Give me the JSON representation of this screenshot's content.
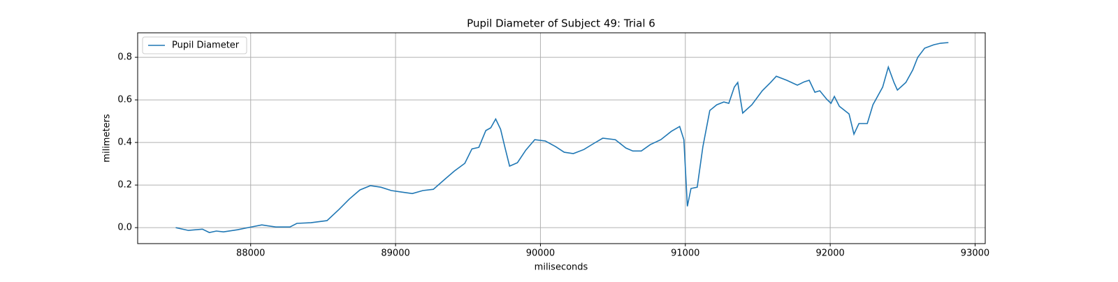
{
  "chart_data": {
    "type": "line",
    "title": "Pupil Diameter of Subject 49: Trial 6",
    "xlabel": "miliseconds",
    "ylabel": "milimeters",
    "xlim": [
      87220,
      93070
    ],
    "ylim": [
      -0.075,
      0.915
    ],
    "xticks": [
      88000,
      89000,
      90000,
      91000,
      92000,
      93000
    ],
    "yticks": [
      {
        "value": 0,
        "label": "0.0"
      },
      0.2,
      0.4,
      0.6,
      0.8
    ],
    "grid": true,
    "legend": "upper left",
    "x": [
      87483,
      87570,
      87667,
      87715,
      87763,
      87812,
      87908,
      87981,
      88077,
      88174,
      88271,
      88319,
      88415,
      88527,
      88609,
      88681,
      88754,
      88826,
      88899,
      88971,
      89043,
      89116,
      89188,
      89261,
      89333,
      89406,
      89478,
      89527,
      89575,
      89623,
      89657,
      89691,
      89725,
      89754,
      89787,
      89841,
      89899,
      89961,
      90034,
      90106,
      90164,
      90227,
      90300,
      90372,
      90430,
      90517,
      90589,
      90638,
      90696,
      90758,
      90831,
      90903,
      90961,
      90990,
      91014,
      91039,
      91082,
      91121,
      91169,
      91217,
      91266,
      91300,
      91338,
      91362,
      91396,
      91459,
      91531,
      91589,
      91628,
      91700,
      91773,
      91821,
      91855,
      91894,
      91928,
      91976,
      92005,
      92029,
      92063,
      92130,
      92164,
      92198,
      92256,
      92295,
      92362,
      92401,
      92440,
      92464,
      92522,
      92570,
      92604,
      92652,
      92715,
      92763,
      92816
    ],
    "series": [
      {
        "name": "Pupil Diameter",
        "color": "#1f77b4",
        "values": [
          0.0,
          -0.013,
          -0.007,
          -0.023,
          -0.016,
          -0.02,
          -0.01,
          0.0,
          0.013,
          0.003,
          0.003,
          0.02,
          0.023,
          0.033,
          0.085,
          0.134,
          0.177,
          0.197,
          0.19,
          0.174,
          0.167,
          0.16,
          0.174,
          0.18,
          0.223,
          0.266,
          0.302,
          0.37,
          0.377,
          0.456,
          0.469,
          0.51,
          0.462,
          0.38,
          0.289,
          0.305,
          0.364,
          0.413,
          0.407,
          0.38,
          0.354,
          0.348,
          0.367,
          0.397,
          0.42,
          0.413,
          0.374,
          0.36,
          0.36,
          0.39,
          0.413,
          0.452,
          0.475,
          0.413,
          0.1,
          0.184,
          0.19,
          0.38,
          0.55,
          0.577,
          0.59,
          0.584,
          0.66,
          0.682,
          0.538,
          0.577,
          0.643,
          0.682,
          0.711,
          0.692,
          0.669,
          0.685,
          0.692,
          0.636,
          0.643,
          0.603,
          0.584,
          0.616,
          0.57,
          0.534,
          0.439,
          0.489,
          0.489,
          0.577,
          0.66,
          0.754,
          0.682,
          0.646,
          0.682,
          0.741,
          0.8,
          0.843,
          0.859,
          0.866,
          0.869
        ]
      }
    ]
  }
}
